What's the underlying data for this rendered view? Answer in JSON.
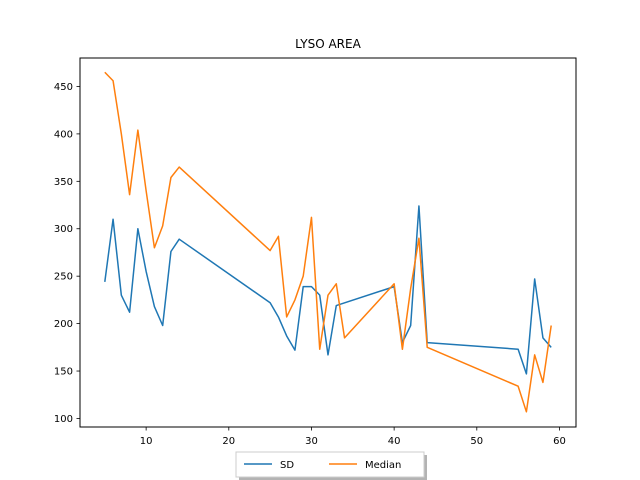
{
  "chart_data": {
    "type": "line",
    "title": "LYSO AREA",
    "xlabel": "",
    "ylabel": "",
    "xlim": [
      2,
      62
    ],
    "ylim": [
      91,
      480
    ],
    "x_ticks": [
      10,
      20,
      30,
      40,
      50,
      60
    ],
    "y_ticks": [
      100,
      150,
      200,
      250,
      300,
      350,
      400,
      450
    ],
    "grid": false,
    "legend_position": "bottom-center",
    "series": [
      {
        "name": "SD",
        "color": "#1f77b4",
        "x": [
          5,
          6,
          7,
          8,
          9,
          10,
          11,
          12,
          13,
          14,
          25,
          26,
          27,
          28,
          29,
          30,
          31,
          32,
          33,
          40,
          41,
          42,
          43,
          44,
          55,
          56,
          57,
          58,
          59
        ],
        "values": [
          244,
          310,
          230,
          212,
          300,
          255,
          218,
          198,
          276,
          289,
          222,
          207,
          187,
          172,
          239,
          239,
          230,
          167,
          219,
          239,
          180,
          198,
          324,
          180,
          173,
          147,
          247,
          185,
          175
        ]
      },
      {
        "name": "Median",
        "color": "#ff7f0e",
        "x": [
          5,
          6,
          7,
          8,
          9,
          10,
          11,
          12,
          13,
          14,
          25,
          26,
          27,
          28,
          29,
          30,
          31,
          32,
          33,
          34,
          40,
          41,
          42,
          43,
          44,
          55,
          56,
          57,
          58,
          59
        ],
        "values": [
          465,
          456,
          400,
          336,
          404,
          340,
          280,
          303,
          354,
          365,
          277,
          292,
          207,
          225,
          250,
          312,
          173,
          230,
          242,
          185,
          242,
          173,
          237,
          290,
          175,
          134,
          107,
          167,
          138,
          198
        ]
      }
    ]
  }
}
